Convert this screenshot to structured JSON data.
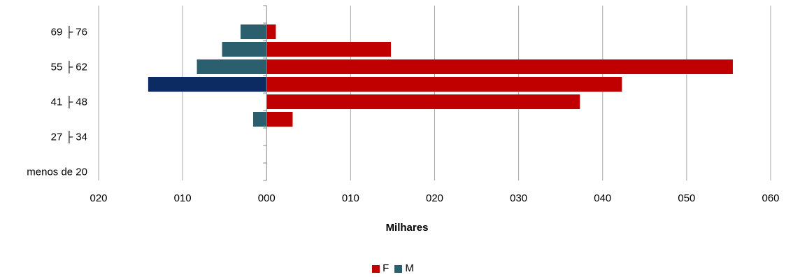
{
  "chart_data": {
    "type": "bar",
    "orientation": "horizontal",
    "categories": [
      "menos de 20",
      "",
      "27 ├ 34",
      "",
      "41 ├ 48",
      "",
      "55 ├ 62",
      "",
      "69 ├ 76",
      ""
    ],
    "series": [
      {
        "name": "F",
        "values": [
          0,
          0,
          0,
          3.1,
          37.3,
          42.3,
          55.5,
          14.8,
          1.1,
          0
        ]
      },
      {
        "name": "M",
        "values": [
          0,
          0,
          0,
          -1.6,
          0,
          -14.1,
          -8.3,
          -5.3,
          -3.1,
          0
        ]
      }
    ],
    "xlim": [
      -20,
      60
    ],
    "x_ticks": [
      -20,
      -10,
      0,
      10,
      20,
      30,
      40,
      50,
      60
    ],
    "x_tick_labels": [
      "020",
      "010",
      "000",
      "010",
      "020",
      "030",
      "040",
      "050",
      "060"
    ],
    "xlabel": "Milhares",
    "ylabel": "",
    "grid": true,
    "legend_position": "bottom",
    "colors": {
      "F": "#C00000",
      "M": "#2B5F6E",
      "M_highlight": "#0D2B63",
      "grid": "#A6A6A6",
      "axis": "#868686"
    }
  },
  "legend": {
    "items": [
      {
        "label": "F",
        "color": "#C00000"
      },
      {
        "label": "M",
        "color": "#2B5F6E"
      }
    ]
  }
}
